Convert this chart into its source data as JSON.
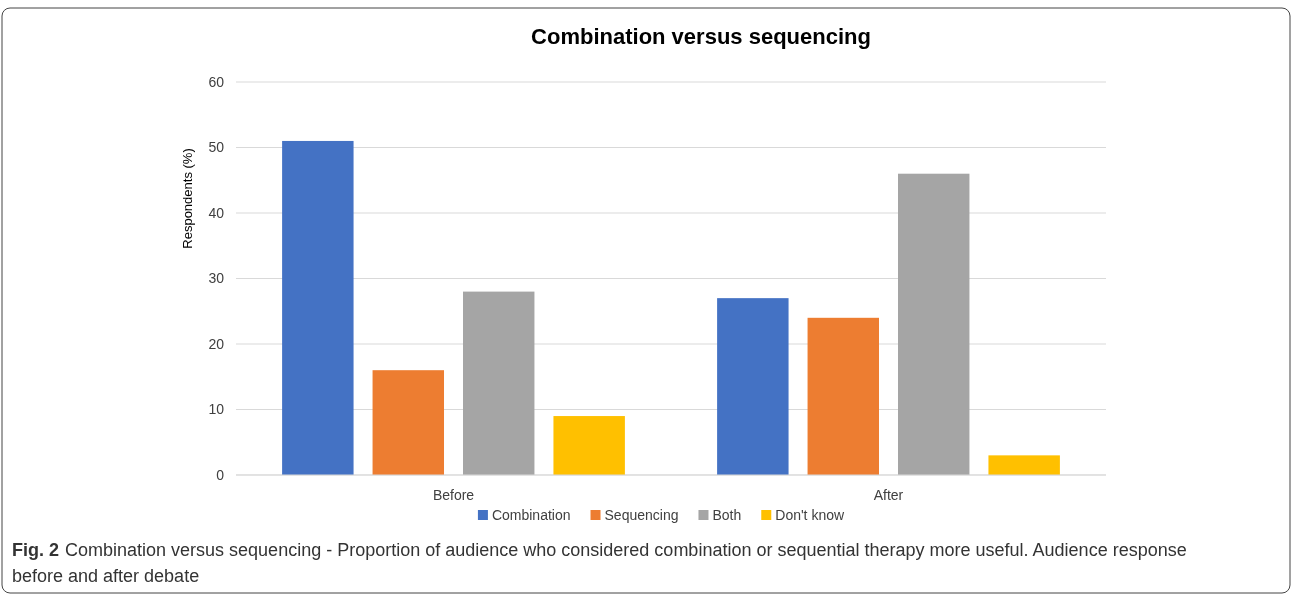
{
  "chart_data": {
    "type": "bar",
    "title": "Combination versus sequencing",
    "ylabel": "Respondents (%)",
    "categories": [
      "Before",
      "After"
    ],
    "series": [
      {
        "name": "Combination",
        "color": "#4472c4",
        "values": [
          51,
          27
        ]
      },
      {
        "name": "Sequencing",
        "color": "#ed7d31",
        "values": [
          16,
          24
        ]
      },
      {
        "name": "Both",
        "color": "#a5a5a5",
        "values": [
          28,
          46
        ]
      },
      {
        "name": "Don't know",
        "color": "#ffc000",
        "values": [
          9,
          3
        ]
      }
    ],
    "ylim": [
      0,
      60
    ],
    "yticks": [
      0,
      10,
      20,
      30,
      40,
      50,
      60
    ],
    "grid": "y",
    "legend": "bottom",
    "annotations": [
      "Fig. 2",
      "Combination versus sequencing - Proportion of audience who considered combination or sequential therapy more useful. Audience response before and after debate"
    ]
  }
}
